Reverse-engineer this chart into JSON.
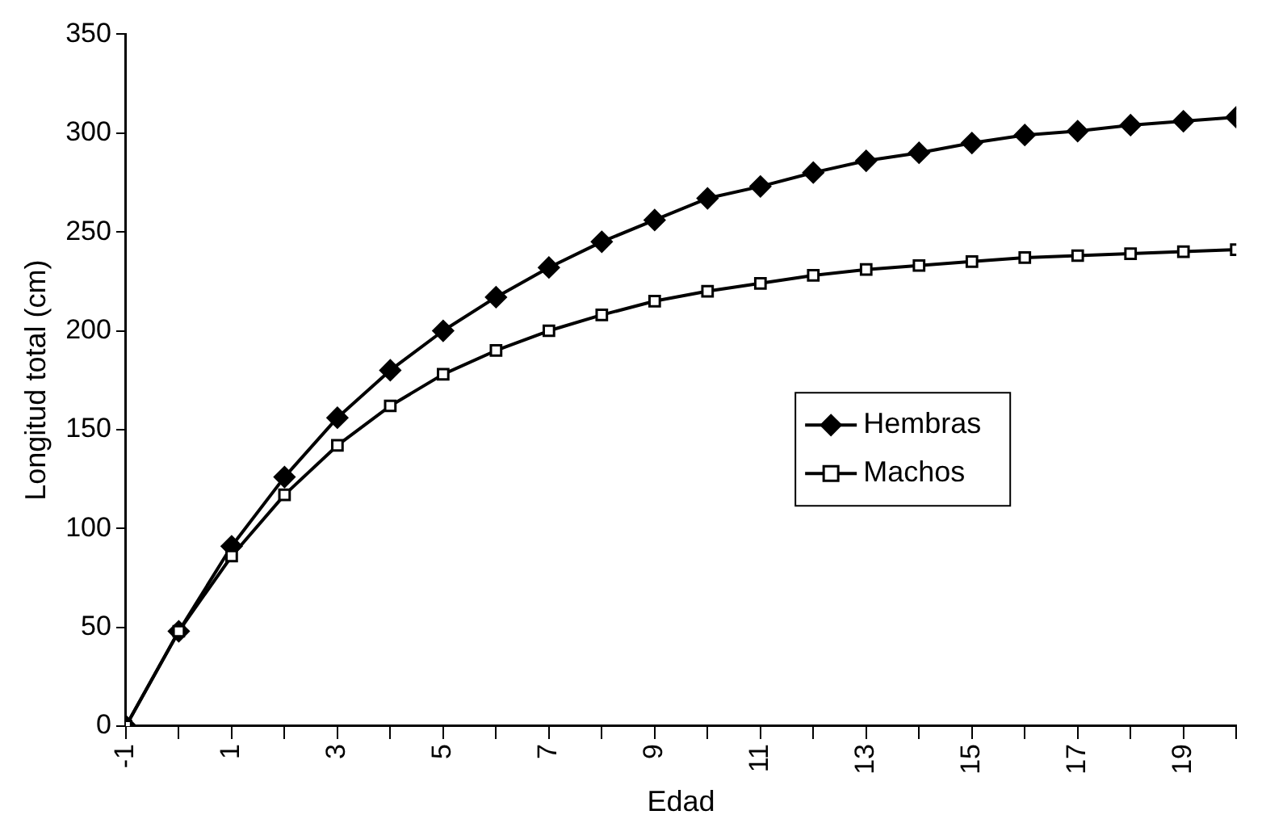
{
  "chart_data": {
    "type": "line",
    "xlabel": "Edad",
    "ylabel": "Longitud total (cm)",
    "x": [
      -1,
      0,
      1,
      2,
      3,
      4,
      5,
      6,
      7,
      8,
      9,
      10,
      11,
      12,
      13,
      14,
      15,
      16,
      17,
      18,
      19,
      20
    ],
    "series": [
      {
        "name": "Hembras",
        "color": "#000000",
        "marker": "diamond",
        "values": [
          0,
          48,
          91,
          126,
          156,
          180,
          200,
          217,
          232,
          245,
          256,
          267,
          273,
          280,
          286,
          290,
          295,
          299,
          301,
          304,
          306,
          308
        ]
      },
      {
        "name": "Machos",
        "color": "#000000",
        "marker": "square",
        "values": [
          0,
          48,
          86,
          117,
          142,
          162,
          178,
          190,
          200,
          208,
          215,
          220,
          224,
          228,
          231,
          233,
          235,
          237,
          238,
          239,
          240,
          241
        ]
      }
    ],
    "xlim": [
      -1,
      20
    ],
    "xticks": [
      -1,
      {
        "value": 0,
        "label": null
      },
      1,
      {
        "value": 2,
        "label": null
      },
      3,
      {
        "value": 4,
        "label": null
      },
      5,
      {
        "value": 6,
        "label": null
      },
      7,
      {
        "value": 8,
        "label": null
      },
      9,
      {
        "value": 10,
        "label": null
      },
      11,
      {
        "value": 12,
        "label": null
      },
      13,
      {
        "value": 14,
        "label": null
      },
      15,
      {
        "value": 16,
        "label": null
      },
      17,
      {
        "value": 18,
        "label": null
      },
      19,
      {
        "value": 20,
        "label": null
      }
    ],
    "ylim": [
      0,
      350
    ],
    "yticks": [
      0,
      50,
      100,
      150,
      200,
      250,
      300,
      350
    ],
    "grid": false,
    "legend": "center right",
    "line_style": "solid"
  }
}
